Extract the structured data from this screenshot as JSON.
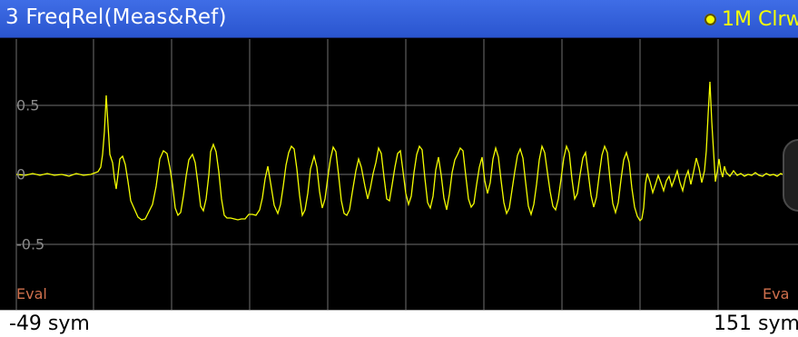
{
  "window": {
    "title": "3 FreqRel(Meas&Ref)",
    "trace_label": "1M Clrw"
  },
  "axes": {
    "y_ticks": [
      "0.5",
      "0",
      "-0.5"
    ],
    "x_start_label": "-49 sym",
    "x_end_label": "151 sym"
  },
  "markers": {
    "eval_left": "Eval",
    "eval_right": "Eva"
  },
  "colors": {
    "title_bar": "#2d59d8",
    "trace": "#f5ff00",
    "grid": "#6f6f6f",
    "eval": "#d0704d",
    "background": "#000000"
  }
}
